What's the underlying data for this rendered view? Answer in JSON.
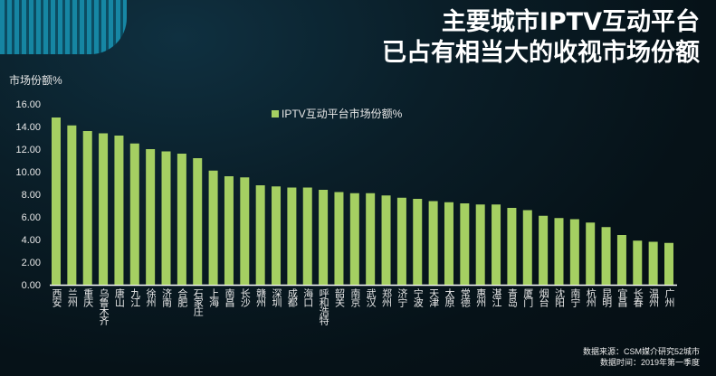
{
  "header": {
    "title_line1": "主要城市IPTV互动平台",
    "title_line2": "已占有相当大的收视市场份额"
  },
  "source": {
    "line1": "数据来源：CSM媒介研究52城市",
    "line2": "数据时间：2019年第一季度"
  },
  "chart_data": {
    "type": "bar",
    "title": "",
    "ylabel": "市场份额%",
    "xlabel": "",
    "ylim": [
      0,
      16
    ],
    "yticks": [
      "0.00",
      "2.00",
      "4.00",
      "6.00",
      "8.00",
      "10.00",
      "12.00",
      "14.00",
      "16.00"
    ],
    "legend": {
      "label": "IPTV互动平台市场份额%",
      "position": "top-center"
    },
    "bar_color": "#a5cf62",
    "categories": [
      "西安",
      "兰州",
      "重庆",
      "乌鲁木齐",
      "唐山",
      "九江",
      "徐州",
      "济南",
      "合肥",
      "石家庄",
      "上海",
      "南昌",
      "长沙",
      "赣州",
      "深圳",
      "成都",
      "海口",
      "呼和浩特",
      "韶关",
      "南京",
      "武汉",
      "郑州",
      "济宁",
      "宁波",
      "天津",
      "太原",
      "常德",
      "惠州",
      "湛江",
      "青岛",
      "厦门",
      "烟台",
      "沈阳",
      "南宁",
      "杭州",
      "昆明",
      "宜昌",
      "长春",
      "温州",
      "广州"
    ],
    "values": [
      14.8,
      14.1,
      13.6,
      13.4,
      13.2,
      12.5,
      12.0,
      11.8,
      11.6,
      11.2,
      10.1,
      9.6,
      9.5,
      8.8,
      8.7,
      8.6,
      8.6,
      8.4,
      8.2,
      8.1,
      8.1,
      7.9,
      7.7,
      7.6,
      7.4,
      7.3,
      7.2,
      7.1,
      7.1,
      6.8,
      6.6,
      6.1,
      5.9,
      5.8,
      5.5,
      5.1,
      4.4,
      3.9,
      3.8,
      3.7
    ]
  }
}
